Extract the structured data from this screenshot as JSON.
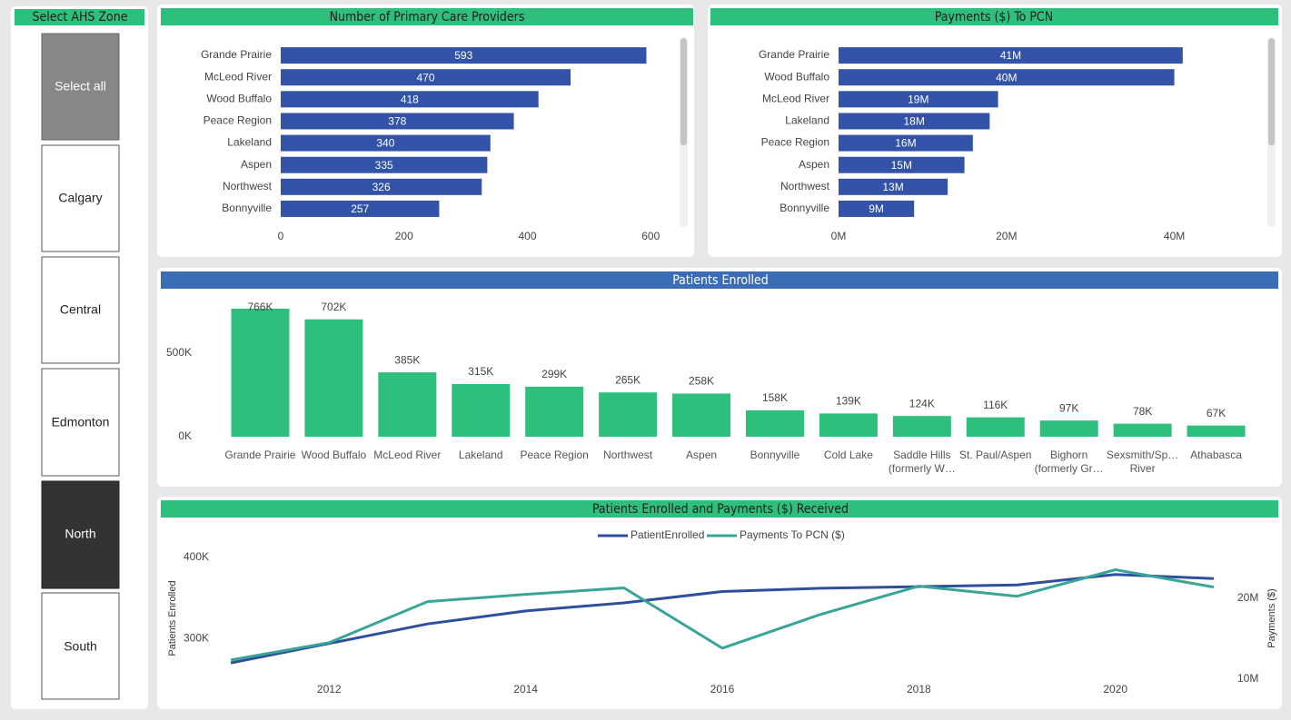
{
  "slicer": {
    "title": "Select AHS Zone",
    "options": [
      "Select all",
      "Calgary",
      "Central",
      "Edmonton",
      "North",
      "South"
    ]
  },
  "chart_data": [
    {
      "type": "hbar",
      "title": "Number of Primary Care Providers",
      "color": "#3253a8",
      "categories": [
        "Grande Prairie",
        "McLeod River",
        "Wood Buffalo",
        "Peace Region",
        "Lakeland",
        "Aspen",
        "Northwest",
        "Bonnyville"
      ],
      "values": [
        593,
        470,
        418,
        378,
        340,
        335,
        326,
        257
      ],
      "xlim": [
        0,
        635
      ],
      "xticks": [
        0,
        200,
        400,
        600
      ]
    },
    {
      "type": "hbar",
      "title": "Payments ($) To PCN",
      "color": "#3253a8",
      "categories": [
        "Grande Prairie",
        "Wood Buffalo",
        "McLeod River",
        "Lakeland",
        "Peace Region",
        "Aspen",
        "Northwest",
        "Bonnyville"
      ],
      "values": [
        41000000,
        40000000,
        19000000,
        18000000,
        16000000,
        15000000,
        13000000,
        9000000
      ],
      "value_labels": [
        "41M",
        "40M",
        "19M",
        "18M",
        "16M",
        "15M",
        "13M",
        "9M"
      ],
      "xlim": [
        0,
        50000000
      ],
      "xticks": [
        {
          "value": 0,
          "label": "0M"
        },
        {
          "value": 20000000,
          "label": "20M"
        },
        {
          "value": 40000000,
          "label": "40M"
        }
      ]
    },
    {
      "type": "bar",
      "title": "Patients Enrolled",
      "color": "#2ebf7c",
      "categories": [
        "Grande Prairie",
        "Wood Buffalo",
        "McLeod River",
        "Lakeland",
        "Peace Region",
        "Northwest",
        "Aspen",
        "Bonnyville",
        "Cold Lake",
        "Saddle Hills (formerly W…",
        "St. Paul/Aspen",
        "Bighorn (formerly Gr…",
        "Sexsmith/Sp… River",
        "Athabasca"
      ],
      "values": [
        766000,
        702000,
        385000,
        315000,
        299000,
        265000,
        258000,
        158000,
        139000,
        124000,
        116000,
        97000,
        78000,
        67000
      ],
      "value_labels": [
        "766K",
        "702K",
        "385K",
        "315K",
        "299K",
        "265K",
        "258K",
        "158K",
        "139K",
        "124K",
        "116K",
        "97K",
        "78K",
        "67K"
      ],
      "ylim": [
        0,
        820000
      ],
      "yticks": [
        {
          "value": 0,
          "label": "0K"
        },
        {
          "value": 500000,
          "label": "500K"
        }
      ]
    },
    {
      "type": "line",
      "title": "Patients Enrolled and Payments ($) Received",
      "legend": "top",
      "x": [
        2011,
        2012,
        2013,
        2014,
        2015,
        2016,
        2017,
        2018,
        2019,
        2020,
        2021
      ],
      "series": [
        {
          "name": "PatientEnrolled",
          "color": "#2f4f9e",
          "values": [
            270000,
            294000,
            318000,
            334000,
            344000,
            358000,
            362000,
            364000,
            366000,
            379000,
            374000
          ]
        },
        {
          "name": "Payments To PCN ($)",
          "color": "#3aa597",
          "axis": "y2",
          "values": [
            12360000,
            14500000,
            19550000,
            20450000,
            21240000,
            13820000,
            17980000,
            21460000,
            20220000,
            23480000,
            21350000
          ]
        }
      ],
      "xlim": [
        2010.5,
        2021.5
      ],
      "xticks": [
        2012,
        2014,
        2016,
        2018,
        2020
      ],
      "ylim": [
        250000,
        410000
      ],
      "yticks": [
        {
          "value": 300000,
          "label": "300K"
        },
        {
          "value": 400000,
          "label": "400K"
        }
      ],
      "y2lim": [
        10000000,
        26000000
      ],
      "y2ticks": [
        {
          "value": 10000000,
          "label": "10M"
        },
        {
          "value": 20000000,
          "label": "20M"
        }
      ],
      "ylabel": "Patients Enrolled",
      "y2label": "Payments ($)"
    }
  ]
}
